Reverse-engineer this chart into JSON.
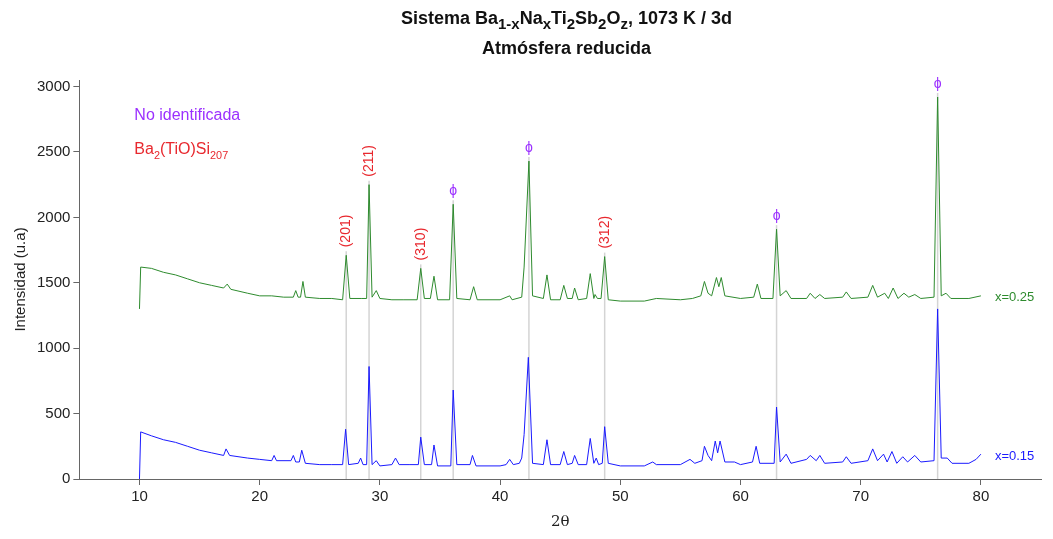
{
  "chart_data": {
    "type": "line",
    "title": "Sistema Ba$_{1-x}$Na$_{x}$Ti$_{2}$Sb$_{2}$O$_{z}$,  1073 K / 3d",
    "subtitle": "Atmósfera reducida",
    "xlabel": "2θ",
    "ylabel": "Intensidad (u.a)",
    "xlim": [
      5,
      85
    ],
    "xticks": [
      10,
      20,
      30,
      40,
      50,
      60,
      70,
      80
    ],
    "ylim": [
      0,
      3050
    ],
    "yticks": [
      0,
      500,
      1000,
      1500,
      2000,
      2500,
      3000
    ],
    "grid": false,
    "legend": false,
    "marker": "none",
    "annotations": [
      "No identificada",
      "Ba$_{2}$(TiO)Si$_{207}$",
      {
        "text": "(201)",
        "x": 27.2,
        "y": 1710
      },
      {
        "text": "(211)",
        "x": 29.1,
        "y": 2250
      },
      {
        "text": "(310)",
        "x": 33.4,
        "y": 1610
      },
      {
        "text": "ϕ",
        "x": 36.1,
        "y": 2100
      },
      {
        "text": "ϕ",
        "x": 42.4,
        "y": 2430
      },
      {
        "text": "(312)",
        "x": 48.7,
        "y": 1700
      },
      {
        "text": "ϕ",
        "x": 63.0,
        "y": 1910
      },
      {
        "text": "ϕ",
        "x": 76.4,
        "y": 2920
      }
    ],
    "ref_lines": [
      {
        "axis": "x",
        "value": 27.2,
        "color": "#d4d4d4"
      },
      {
        "axis": "x",
        "value": 29.1,
        "color": "#d4d4d4"
      },
      {
        "axis": "x",
        "value": 33.4,
        "color": "#d4d4d4"
      },
      {
        "axis": "x",
        "value": 36.1,
        "color": "#d4d4d4"
      },
      {
        "axis": "x",
        "value": 42.4,
        "color": "#d4d4d4"
      },
      {
        "axis": "x",
        "value": 48.7,
        "color": "#d4d4d4"
      },
      {
        "axis": "x",
        "value": 63.0,
        "color": "#d4d4d4"
      },
      {
        "axis": "x",
        "value": 76.4,
        "color": "#d4d4d4"
      }
    ],
    "series": [
      {
        "name": "x=0.25",
        "color": "#2e8b2e",
        "x": [
          10,
          10.1,
          11,
          12,
          13,
          14,
          15,
          16,
          17,
          17.3,
          17.6,
          19,
          20,
          21,
          22,
          22.8,
          23.0,
          23.2,
          23.4,
          23.6,
          23.8,
          25,
          26,
          26.9,
          27.2,
          27.5,
          28.5,
          28.9,
          29.1,
          29.35,
          29.7,
          30,
          31,
          32,
          33.1,
          33.4,
          33.7,
          34.2,
          34.5,
          34.8,
          35.8,
          36.1,
          36.4,
          37.5,
          37.8,
          38.1,
          40,
          40.8,
          41,
          41.8,
          42.0,
          42.4,
          42.7,
          43.6,
          43.9,
          44.2,
          45.0,
          45.3,
          45.6,
          46.0,
          46.2,
          46.5,
          47.2,
          47.5,
          47.8,
          47.9,
          48.1,
          48.4,
          48.7,
          49.0,
          50,
          52,
          53,
          55,
          56,
          56.7,
          57.0,
          57.3,
          57.6,
          58.0,
          58.2,
          58.4,
          58.7,
          60,
          61.1,
          61.4,
          61.7,
          62.7,
          63.0,
          63.3,
          63.8,
          64.2,
          65.5,
          65.8,
          66.2,
          66.6,
          67,
          68.5,
          68.8,
          69.2,
          70.6,
          71.0,
          71.4,
          72.0,
          72.3,
          72.7,
          73.1,
          73.6,
          74,
          74.5,
          75,
          76.1,
          76.4,
          76.7,
          77.1,
          77.5,
          79,
          80
        ],
        "values": [
          1300,
          1620,
          1610,
          1580,
          1560,
          1530,
          1500,
          1480,
          1460,
          1490,
          1450,
          1420,
          1400,
          1400,
          1390,
          1390,
          1440,
          1390,
          1390,
          1510,
          1390,
          1380,
          1380,
          1370,
          1710,
          1380,
          1380,
          1380,
          2250,
          1390,
          1440,
          1380,
          1370,
          1370,
          1370,
          1610,
          1380,
          1380,
          1550,
          1370,
          1370,
          2100,
          1380,
          1370,
          1470,
          1370,
          1370,
          1400,
          1370,
          1390,
          1620,
          2430,
          1400,
          1380,
          1560,
          1370,
          1370,
          1480,
          1380,
          1380,
          1460,
          1370,
          1380,
          1570,
          1380,
          1410,
          1380,
          1380,
          1700,
          1370,
          1360,
          1360,
          1380,
          1370,
          1380,
          1400,
          1510,
          1420,
          1400,
          1540,
          1470,
          1540,
          1400,
          1380,
          1390,
          1490,
          1380,
          1380,
          1910,
          1400,
          1440,
          1380,
          1380,
          1420,
          1380,
          1410,
          1380,
          1390,
          1430,
          1380,
          1390,
          1480,
          1390,
          1420,
          1380,
          1460,
          1380,
          1420,
          1390,
          1410,
          1380,
          1390,
          2920,
          1400,
          1420,
          1380,
          1380,
          1400
        ]
      },
      {
        "name": "x=0.15",
        "color": "#1a1aff",
        "x": [
          10,
          10.1,
          11,
          12,
          13,
          14,
          15,
          16,
          17,
          17.2,
          17.5,
          19,
          20,
          21,
          21.2,
          21.4,
          22.6,
          22.8,
          23.0,
          23.3,
          23.5,
          23.8,
          25,
          26,
          26.9,
          27.15,
          27.4,
          28.2,
          28.4,
          28.6,
          28.9,
          29.1,
          29.35,
          29.7,
          30,
          31,
          31.3,
          31.6,
          32.5,
          33.2,
          33.4,
          33.7,
          34.3,
          34.5,
          34.8,
          35.9,
          36.1,
          36.4,
          37.5,
          37.7,
          38,
          40,
          40.5,
          40.8,
          41.1,
          41.6,
          41.8,
          42.0,
          42.35,
          42.7,
          43.6,
          43.9,
          44.2,
          45.0,
          45.3,
          45.6,
          46.0,
          46.2,
          46.5,
          47.2,
          47.5,
          47.8,
          48.0,
          48.2,
          48.5,
          48.7,
          49.0,
          50,
          52,
          52.7,
          53,
          55,
          55.8,
          56.2,
          56.8,
          57.0,
          57.3,
          57.6,
          57.9,
          58.1,
          58.3,
          58.7,
          59.5,
          60,
          61.0,
          61.3,
          61.6,
          62.8,
          63.0,
          63.3,
          63.8,
          64.2,
          65.5,
          65.8,
          66.3,
          66.6,
          67,
          68.5,
          68.8,
          69.2,
          70.6,
          71.0,
          71.4,
          71.9,
          72.2,
          72.6,
          73,
          73.5,
          73.9,
          74.5,
          75,
          76.1,
          76.4,
          76.7,
          77.2,
          77.6,
          79,
          79.6,
          80
        ],
        "values": [
          0,
          360,
          330,
          300,
          280,
          250,
          220,
          200,
          180,
          230,
          180,
          160,
          150,
          140,
          180,
          140,
          140,
          180,
          130,
          130,
          220,
          120,
          110,
          110,
          110,
          380,
          110,
          120,
          160,
          110,
          110,
          860,
          110,
          140,
          100,
          110,
          160,
          110,
          110,
          110,
          320,
          110,
          110,
          260,
          100,
          100,
          680,
          110,
          110,
          180,
          100,
          100,
          110,
          150,
          110,
          120,
          160,
          340,
          930,
          120,
          110,
          300,
          110,
          110,
          210,
          110,
          120,
          180,
          110,
          110,
          310,
          120,
          160,
          110,
          120,
          400,
          120,
          100,
          100,
          130,
          110,
          110,
          150,
          120,
          140,
          250,
          180,
          140,
          290,
          200,
          290,
          130,
          130,
          110,
          130,
          250,
          120,
          120,
          550,
          130,
          190,
          120,
          150,
          180,
          140,
          180,
          120,
          130,
          170,
          120,
          140,
          230,
          140,
          190,
          130,
          210,
          120,
          170,
          130,
          180,
          130,
          140,
          1300,
          160,
          160,
          120,
          120,
          150,
          190
        ]
      }
    ]
  }
}
